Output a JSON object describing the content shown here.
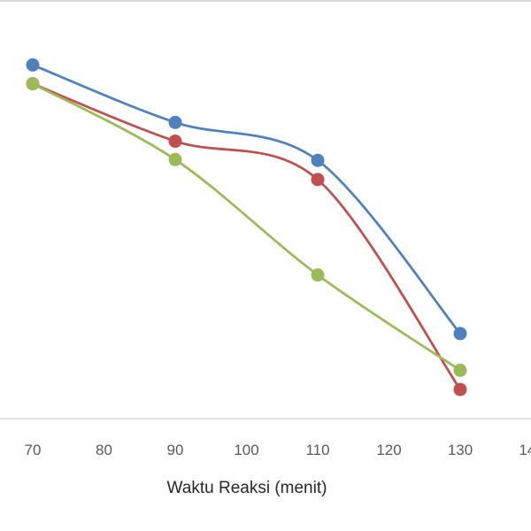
{
  "chart_data": {
    "type": "line",
    "title": "",
    "xlabel": "Waktu Reaksi (menit)",
    "ylabel": "",
    "xlim": [
      70,
      140
    ],
    "x_ticks": [
      70,
      80,
      90,
      100,
      110,
      120,
      130,
      140
    ],
    "ylim": [
      0,
      100
    ],
    "grid": false,
    "legend": "none",
    "smoothed": true,
    "x": [
      70,
      90,
      110,
      130
    ],
    "series": [
      {
        "color": "#4f81bd",
        "values": [
          88.6,
          74.2,
          64.7,
          21.3
        ]
      },
      {
        "color": "#c0504d",
        "values": [
          83.9,
          69.5,
          59.9,
          7.3
        ]
      },
      {
        "color": "#9bbb59",
        "values": [
          83.9,
          64.9,
          36.0,
          12.1
        ]
      }
    ]
  }
}
